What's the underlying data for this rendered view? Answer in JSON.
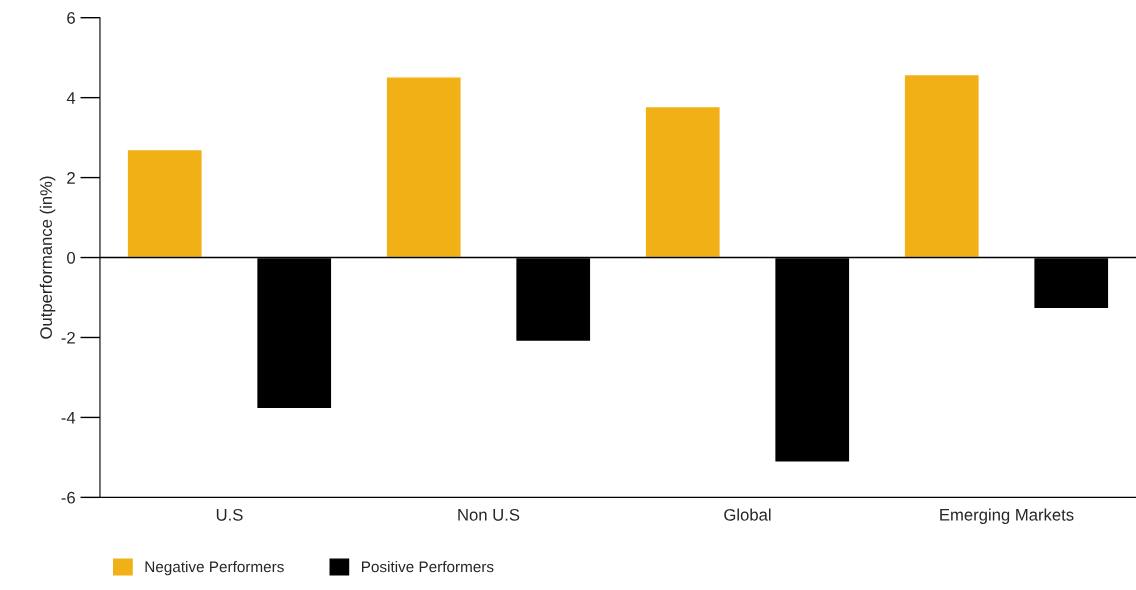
{
  "chart_data": {
    "type": "bar",
    "ylabel": "Outperformance (in%)",
    "categories": [
      "U.S",
      "Non U.S",
      "Global",
      "Emerging Markets"
    ],
    "series": [
      {
        "name": "Negative Performers",
        "color": "#f0b016",
        "values": [
          2.7,
          4.52,
          3.78,
          4.58
        ]
      },
      {
        "name": "Positive Performers",
        "color": "#000000",
        "values": [
          -3.78,
          -2.1,
          -5.12,
          -1.28
        ]
      }
    ],
    "ylim": [
      -6,
      6
    ],
    "yticks": [
      -6,
      -4,
      -2,
      0,
      2,
      4,
      6
    ],
    "grid": false,
    "legend": "bottom left",
    "ref_lines": [
      {
        "axis": "y",
        "value": 0,
        "color": "#000000"
      }
    ]
  }
}
